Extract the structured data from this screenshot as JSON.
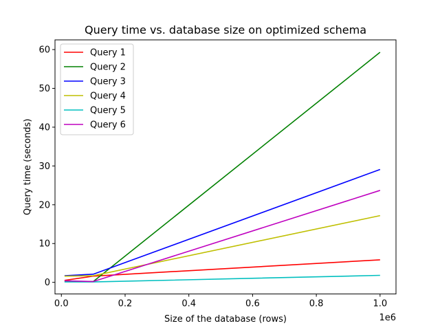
{
  "chart_data": {
    "type": "line",
    "title": "Query time vs. database size on optimized schema",
    "xlabel": "Size of the database (rows)",
    "ylabel": "Query time (seconds)",
    "x_offset_label": "1e6",
    "x_scale": 1000000,
    "xlim": [
      -20000,
      1050000
    ],
    "ylim": [
      -3,
      62.5
    ],
    "x": [
      10000,
      100000,
      1000000
    ],
    "xticks": [
      0,
      200000,
      400000,
      600000,
      800000,
      1000000
    ],
    "xtick_labels": [
      "0.0",
      "0.2",
      "0.4",
      "0.6",
      "0.8",
      "1.0"
    ],
    "yticks": [
      0,
      10,
      20,
      30,
      40,
      50,
      60
    ],
    "ytick_labels": [
      "0",
      "10",
      "20",
      "30",
      "40",
      "50",
      "60"
    ],
    "grid": false,
    "legend_position": "top-left",
    "series": [
      {
        "name": "Query 1",
        "color": "#ff0000",
        "values": [
          0.5,
          1.6,
          5.8
        ]
      },
      {
        "name": "Query 2",
        "color": "#008000",
        "values": [
          0.2,
          0.2,
          59.3
        ]
      },
      {
        "name": "Query 3",
        "color": "#0000ff",
        "values": [
          1.7,
          2.1,
          29.1
        ]
      },
      {
        "name": "Query 4",
        "color": "#bfbf00",
        "values": [
          1.6,
          1.7,
          17.2
        ]
      },
      {
        "name": "Query 5",
        "color": "#00bfbf",
        "values": [
          0.1,
          0.1,
          1.8
        ]
      },
      {
        "name": "Query 6",
        "color": "#bf00bf",
        "values": [
          0.4,
          0.2,
          23.7
        ]
      }
    ]
  }
}
